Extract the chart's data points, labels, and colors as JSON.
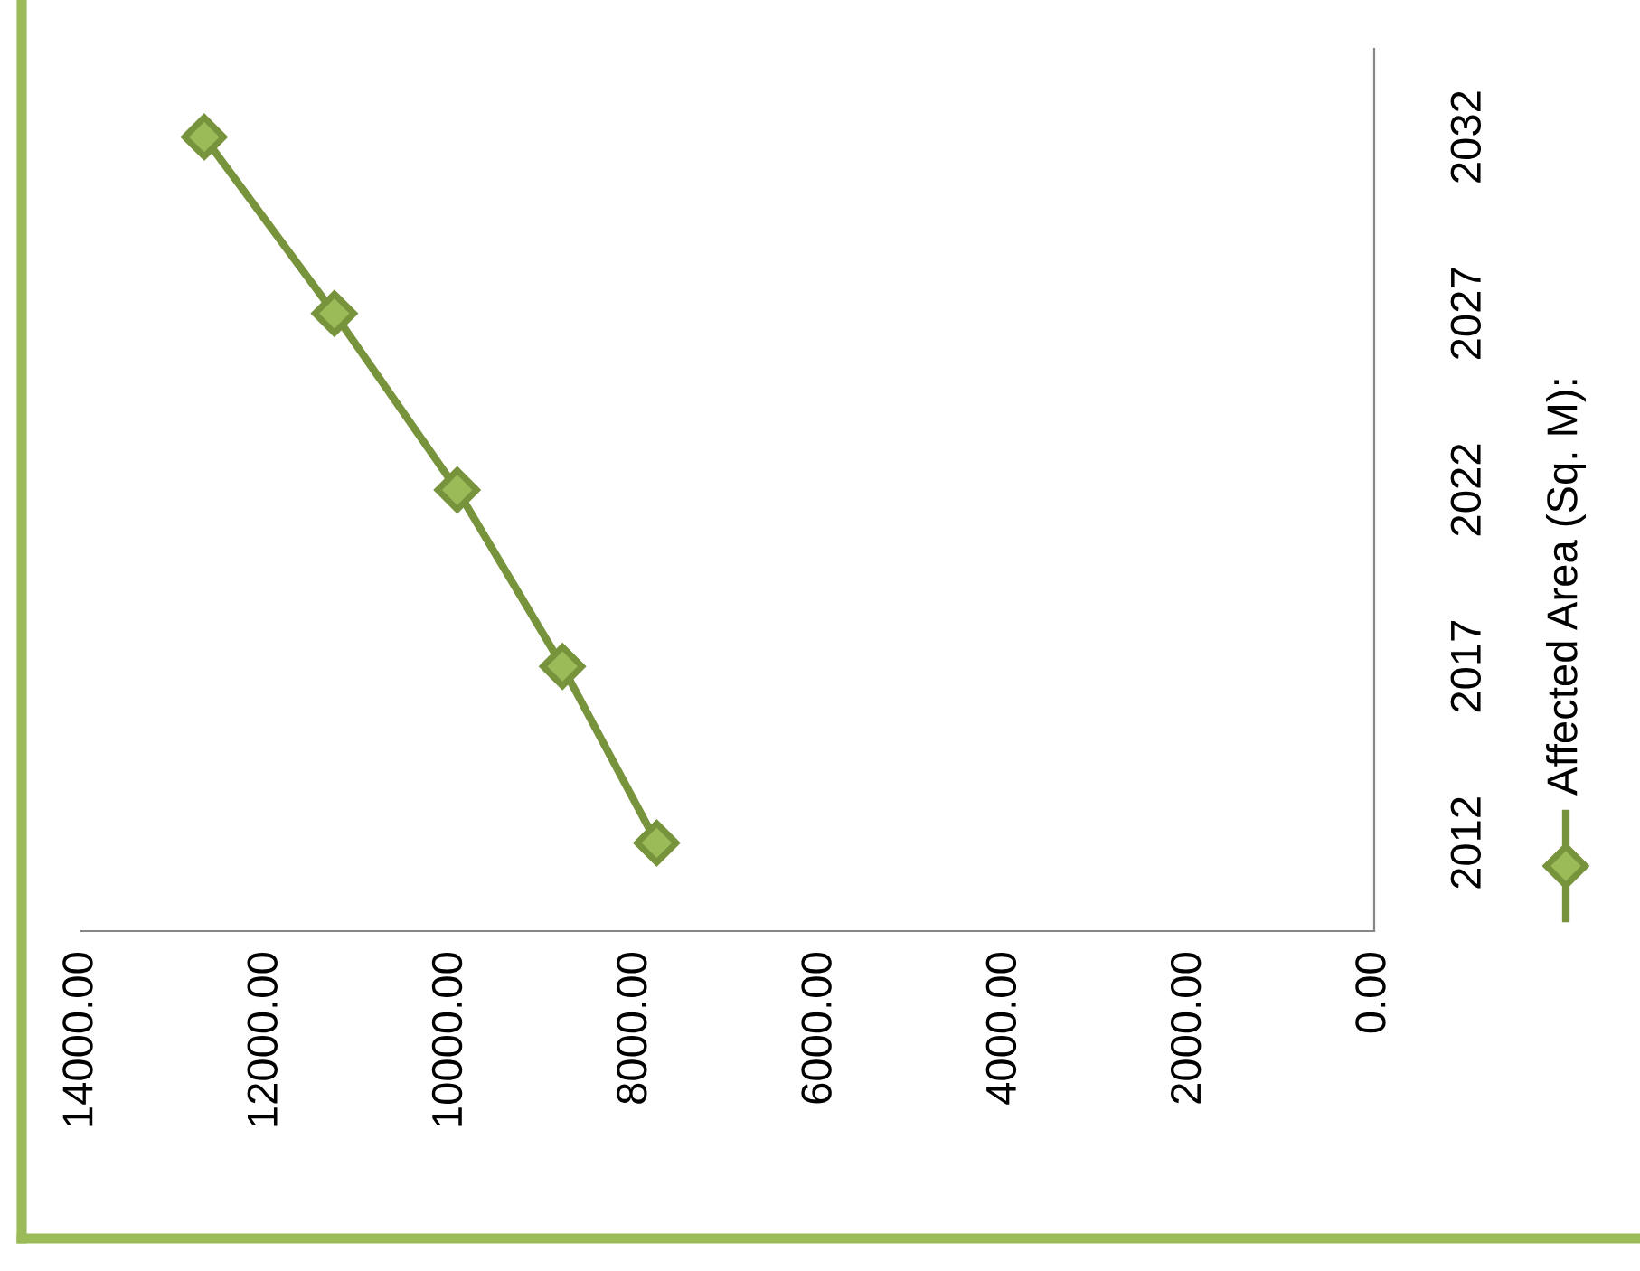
{
  "chart_data": {
    "type": "line",
    "orientation": "horizontal",
    "categories": [
      "2032",
      "2027",
      "2022",
      "2017",
      "2012"
    ],
    "series": [
      {
        "name": "Affected Area (Sq. M):",
        "color": "#77933c",
        "values": [
          12670,
          11260,
          9930,
          8790,
          7770
        ]
      }
    ],
    "xlim": [
      14000,
      0
    ],
    "xticks": [
      {
        "value": 14000,
        "label": "14000.00"
      },
      {
        "value": 12000,
        "label": "12000.00"
      },
      {
        "value": 10000,
        "label": "10000.00"
      },
      {
        "value": 8000,
        "label": "8000.00"
      },
      {
        "value": 6000,
        "label": "6000.00"
      },
      {
        "value": 4000,
        "label": "4000.00"
      },
      {
        "value": 2000,
        "label": "2000.00"
      },
      {
        "value": 0,
        "label": "0.00"
      }
    ],
    "marker": "diamond",
    "line_style": "solid",
    "grid": false,
    "legend": "right"
  }
}
